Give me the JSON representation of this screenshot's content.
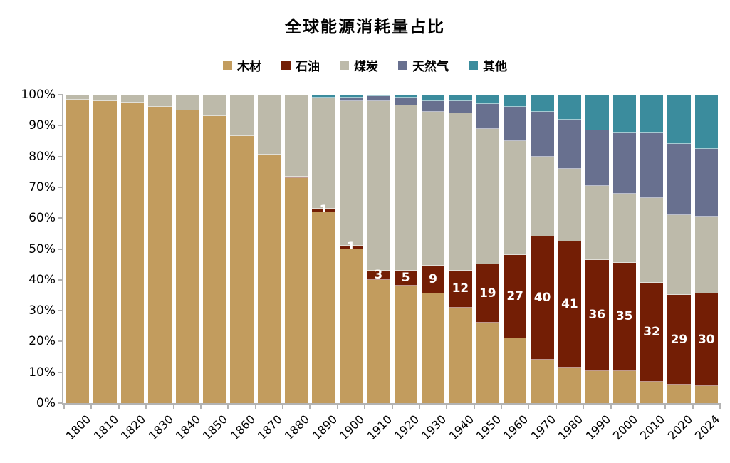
{
  "chart_data": {
    "type": "bar",
    "stacked": true,
    "title": "全球能源消耗量占比",
    "legend_position": "top",
    "grid": false,
    "background": "#ffffff",
    "axis_color": "#b3b3b3",
    "value_label_color": "#ffffff",
    "categories": [
      "1800",
      "1810",
      "1820",
      "1830",
      "1840",
      "1850",
      "1860",
      "1870",
      "1880",
      "1890",
      "1900",
      "1910",
      "1920",
      "1930",
      "1940",
      "1950",
      "1960",
      "1970",
      "1980",
      "1990",
      "2000",
      "2010",
      "2020",
      "2024"
    ],
    "series": [
      {
        "key": "wood",
        "name": "木材",
        "color": "#C29C5E",
        "values": [
          98.5,
          98,
          97.5,
          96,
          95,
          93,
          86.5,
          80.5,
          73,
          62,
          50,
          40,
          38,
          35.5,
          31,
          26,
          21,
          14,
          11.5,
          10.5,
          10.5,
          7,
          6,
          5.5
        ]
      },
      {
        "key": "oil",
        "name": "石油",
        "color": "#731E05",
        "values": [
          0,
          0,
          0,
          0,
          0,
          0,
          0,
          0,
          0.5,
          1,
          1,
          3,
          5,
          9,
          12,
          19,
          27,
          40,
          41,
          36,
          35,
          32,
          29,
          30
        ],
        "data_labels": [
          "",
          "",
          "",
          "",
          "",
          "",
          "",
          "",
          "",
          "1",
          "1",
          "3",
          "5",
          "9",
          "12",
          "19",
          "27",
          "40",
          "41",
          "36",
          "35",
          "32",
          "29",
          "30"
        ]
      },
      {
        "key": "coal",
        "name": "煤炭",
        "color": "#BDBAAA",
        "values": [
          1.5,
          2,
          2.5,
          4,
          5,
          7,
          13.5,
          19.5,
          26.5,
          36,
          47,
          55,
          53.5,
          50,
          51,
          44,
          37,
          26,
          23.5,
          24,
          22.5,
          27.5,
          26,
          25
        ]
      },
      {
        "key": "gas",
        "name": "天然气",
        "color": "#68708F",
        "values": [
          0,
          0,
          0,
          0,
          0,
          0,
          0,
          0,
          0,
          0,
          1,
          1.5,
          2.5,
          3.5,
          4,
          8,
          11,
          14.5,
          16,
          18,
          19.5,
          21,
          23,
          22
        ]
      },
      {
        "key": "other",
        "name": "其他",
        "color": "#3B8C9D",
        "values": [
          0,
          0,
          0,
          0,
          0,
          0,
          0,
          0,
          0,
          1,
          1,
          0.5,
          1,
          2,
          2,
          3,
          4,
          5.5,
          8,
          11.5,
          12.5,
          12.5,
          16,
          17.5
        ]
      }
    ],
    "y_axis": {
      "min": 0,
      "max": 100,
      "ticks": [
        "0%",
        "10%",
        "20%",
        "30%",
        "40%",
        "50%",
        "60%",
        "70%",
        "80%",
        "90%",
        "100%"
      ]
    }
  }
}
